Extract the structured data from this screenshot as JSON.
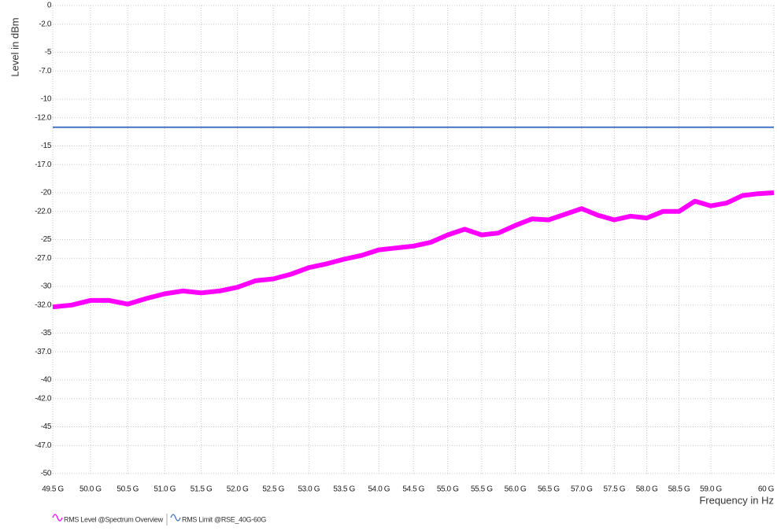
{
  "chart_data": {
    "type": "line",
    "y_label": "Level in dBm",
    "x_label": "Frequency in Hz",
    "xscale": "log",
    "grid": true,
    "legend": "bottom-left",
    "xlim": [
      49500000000,
      60000000000
    ],
    "xticks": [
      {
        "value": 49500000000,
        "label": "49.5 G"
      },
      {
        "value": 50000000000,
        "label": "50.0 G"
      },
      {
        "value": 50500000000,
        "label": "50.5 G"
      },
      {
        "value": 51000000000,
        "label": "51.0 G"
      },
      {
        "value": 51500000000,
        "label": "51.5 G"
      },
      {
        "value": 52000000000,
        "label": "52.0 G"
      },
      {
        "value": 52500000000,
        "label": "52.5 G"
      },
      {
        "value": 53000000000,
        "label": "53.0 G"
      },
      {
        "value": 53500000000,
        "label": "53.5 G"
      },
      {
        "value": 54000000000,
        "label": "54.0 G"
      },
      {
        "value": 54500000000,
        "label": "54.5 G"
      },
      {
        "value": 55000000000,
        "label": "55.0 G"
      },
      {
        "value": 55500000000,
        "label": "55.5 G"
      },
      {
        "value": 56000000000,
        "label": "56.0 G"
      },
      {
        "value": 56500000000,
        "label": "56.5 G"
      },
      {
        "value": 57000000000,
        "label": "57.0 G"
      },
      {
        "value": 57500000000,
        "label": "57.5 G"
      },
      {
        "value": 58000000000,
        "label": "58.0 G"
      },
      {
        "value": 58500000000,
        "label": "58.5 G"
      },
      {
        "value": 59000000000,
        "label": "59.0 G"
      },
      {
        "value": 60000000000,
        "label": "60 G"
      }
    ],
    "ylim": [
      -50,
      0
    ],
    "yticks": [
      0,
      {
        "value": -2,
        "label": "-2.0"
      },
      -5,
      {
        "value": -7,
        "label": "-7.0"
      },
      -10,
      {
        "value": -12,
        "label": "-12.0"
      },
      -15,
      {
        "value": -17,
        "label": "-17.0"
      },
      -20,
      {
        "value": -22,
        "label": "-22.0"
      },
      -25,
      {
        "value": -27,
        "label": "-27.0"
      },
      -30,
      {
        "value": -32,
        "label": "-32.0"
      },
      -35,
      {
        "value": -37,
        "label": "-37.0"
      },
      -40,
      {
        "value": -42,
        "label": "-42.0"
      },
      -45,
      {
        "value": -47,
        "label": "-47.0"
      },
      -50
    ],
    "series": [
      {
        "name": "RMS Level @Spectrum Overview",
        "color": "#ff00ff",
        "x": [
          49500000000,
          49750000000,
          50000000000,
          50250000000,
          50500000000,
          50750000000,
          51000000000,
          51250000000,
          51500000000,
          51750000000,
          52000000000,
          52250000000,
          52500000000,
          52750000000,
          53000000000,
          53250000000,
          53500000000,
          53750000000,
          54000000000,
          54250000000,
          54500000000,
          54750000000,
          55000000000,
          55250000000,
          55500000000,
          55750000000,
          56000000000,
          56250000000,
          56500000000,
          56750000000,
          57000000000,
          57250000000,
          57500000000,
          57750000000,
          58000000000,
          58250000000,
          58500000000,
          58750000000,
          59000000000,
          59250000000,
          59500000000,
          59750000000,
          60000000000
        ],
        "values": [
          -32.2,
          -32.0,
          -31.5,
          -31.5,
          -31.9,
          -31.3,
          -30.8,
          -30.5,
          -30.7,
          -30.5,
          -30.1,
          -29.4,
          -29.2,
          -28.7,
          -28.0,
          -27.6,
          -27.1,
          -26.7,
          -26.1,
          -25.9,
          -25.7,
          -25.3,
          -24.5,
          -23.9,
          -24.5,
          -24.3,
          -23.5,
          -22.8,
          -22.9,
          -22.3,
          -21.7,
          -22.4,
          -22.9,
          -22.5,
          -22.7,
          -22.0,
          -22.0,
          -20.9,
          -21.4,
          -21.1,
          -20.3,
          -20.1,
          -20.0
        ]
      },
      {
        "name": "RMS Limit @RSE_40G-60G",
        "color": "#4472c4",
        "x": [
          49500000000,
          60000000000
        ],
        "values": [
          -13,
          -13
        ]
      }
    ]
  }
}
